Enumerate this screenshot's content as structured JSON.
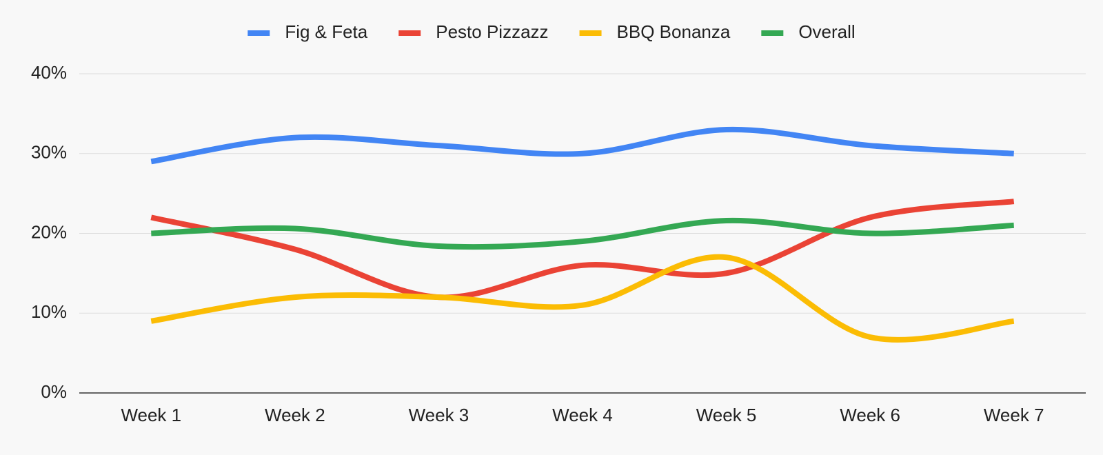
{
  "chart_data": {
    "type": "line",
    "categories": [
      "Week 1",
      "Week 2",
      "Week 3",
      "Week 4",
      "Week 5",
      "Week 6",
      "Week 7"
    ],
    "series": [
      {
        "name": "Fig & Feta",
        "color": "#4285f4",
        "values": [
          29,
          32,
          31,
          30,
          33,
          31,
          30
        ]
      },
      {
        "name": "Pesto Pizzazz",
        "color": "#ea4335",
        "values": [
          22,
          18,
          12,
          16,
          15,
          22,
          24
        ]
      },
      {
        "name": "BBQ Bonanza",
        "color": "#fbbc04",
        "values": [
          9,
          12,
          12,
          11,
          17,
          7,
          9
        ]
      },
      {
        "name": "Overall",
        "color": "#34a853",
        "values": [
          20,
          20.6,
          18.4,
          19,
          21.6,
          20,
          21
        ]
      }
    ],
    "ylim": [
      0,
      40
    ],
    "yticks": [
      {
        "value": 0,
        "label": "0%"
      },
      {
        "value": 10,
        "label": "10%"
      },
      {
        "value": 20,
        "label": "20%"
      },
      {
        "value": 30,
        "label": "30%"
      },
      {
        "value": 40,
        "label": "40%"
      }
    ],
    "grid": true,
    "legend": "top",
    "smooth": true
  }
}
